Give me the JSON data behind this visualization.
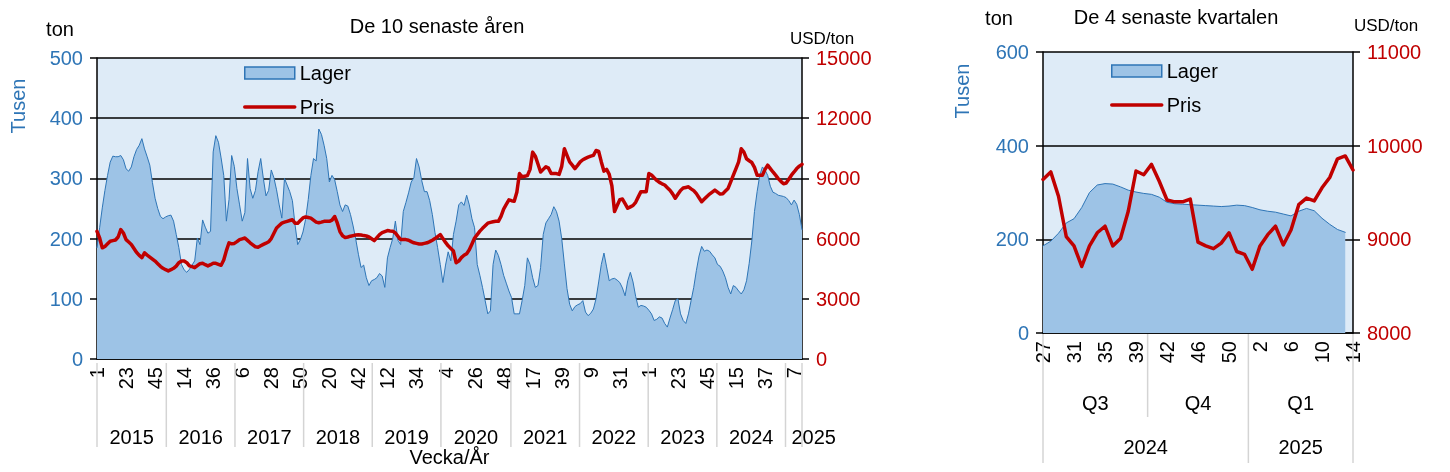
{
  "chart_data": [
    {
      "type": "area",
      "title": "De 10 senaste åren",
      "xlabel": "Vecka/År",
      "ylabel": "ton",
      "y2label": "USD/ton",
      "annotations": [
        "Tusen",
        "2015",
        "2016",
        "2017",
        "2018",
        "2019",
        "2020",
        "2021",
        "2022",
        "2023",
        "2024",
        "2025"
      ],
      "categories": [
        "1",
        null,
        null,
        null,
        null,
        null,
        null,
        null,
        null,
        null,
        null,
        "23",
        null,
        null,
        null,
        null,
        null,
        null,
        null,
        null,
        null,
        null,
        "45",
        null,
        null,
        null,
        null,
        null,
        null,
        null,
        null,
        null,
        null,
        "14",
        null,
        null,
        null,
        null,
        null,
        null,
        null,
        null,
        null,
        null,
        "36",
        null,
        null,
        null,
        null,
        null,
        null,
        null,
        null,
        null,
        null,
        "6",
        null,
        null,
        null,
        null,
        null,
        null,
        null,
        null,
        null,
        null,
        "28",
        null,
        null,
        null,
        null,
        null,
        null,
        null,
        null,
        null,
        null,
        "50",
        null,
        null,
        null,
        null,
        null,
        null,
        null,
        null,
        null,
        null,
        "20",
        null,
        null,
        null,
        null,
        null,
        null,
        null,
        null,
        null,
        null,
        "42",
        null,
        null,
        null,
        null,
        null,
        null,
        null,
        null,
        null,
        null,
        "12",
        null,
        null,
        null,
        null,
        null,
        null,
        null,
        null,
        null,
        null,
        "34",
        null,
        null,
        null,
        null,
        null,
        null,
        null,
        null,
        null,
        null,
        "4",
        null,
        null,
        null,
        null,
        null,
        null,
        null,
        null,
        null,
        null,
        "26",
        null,
        null,
        null,
        null,
        null,
        null,
        null,
        null,
        null,
        null,
        "48",
        null,
        null,
        null,
        null,
        null,
        null,
        null,
        null,
        null,
        null,
        "17",
        null,
        null,
        null,
        null,
        null,
        null,
        null,
        null,
        null,
        null,
        "39",
        null,
        null,
        null,
        null,
        null,
        null,
        null,
        null,
        null,
        null,
        "9",
        null,
        null,
        null,
        null,
        null,
        null,
        null,
        null,
        null,
        null,
        "31",
        null,
        null,
        null,
        null,
        null,
        null,
        null,
        null,
        null,
        null,
        "1",
        null,
        null,
        null,
        null,
        null,
        null,
        null,
        null,
        null,
        null,
        "23",
        null,
        null,
        null,
        null,
        null,
        null,
        null,
        null,
        null,
        null,
        "45",
        null,
        null,
        null,
        null,
        null,
        null,
        null,
        null,
        null,
        null,
        "15",
        null,
        null,
        null,
        null,
        null,
        null,
        null,
        null,
        null,
        null,
        "37",
        null,
        null,
        null,
        null,
        null,
        null,
        null,
        null,
        null,
        null,
        "7",
        null,
        null,
        null
      ],
      "ylim": [
        0,
        500
      ],
      "yticks": [
        0,
        100,
        200,
        300,
        400,
        500
      ],
      "y2lim": [
        0,
        15000
      ],
      "y2ticks": [
        0,
        3000,
        6000,
        9000,
        12000,
        15000
      ],
      "grid": "y",
      "legend": "top",
      "series": [
        {
          "name": "Lager",
          "color": "#9dc3e6",
          "values": [
            185,
            218,
            251,
            280,
            305,
            327,
            337,
            336,
            336,
            338,
            331,
            316,
            312,
            319,
            336,
            348,
            355,
            366,
            349,
            336,
            322,
            293,
            267,
            250,
            237,
            233,
            236,
            238,
            239,
            229,
            207,
            185,
            157,
            148,
            144,
            149,
            156,
            163,
            201,
            190,
            231,
            219,
            209,
            212,
            344,
            371,
            360,
            334,
            305,
            229,
            265,
            338,
            320,
            283,
            256,
            229,
            243,
            333,
            283,
            267,
            280,
            311,
            333,
            300,
            271,
            280,
            314,
            301,
            281,
            256,
            234,
            300,
            289,
            278,
            263,
            223,
            190,
            198,
            211,
            232,
            265,
            305,
            333,
            329,
            382,
            373,
            355,
            333,
            294,
            305,
            298,
            278,
            256,
            245,
            256,
            254,
            240,
            221,
            199,
            174,
            152,
            156,
            135,
            122,
            130,
            132,
            135,
            142,
            138,
            119,
            168,
            185,
            200,
            229,
            197,
            190,
            245,
            260,
            276,
            294,
            301,
            333,
            319,
            296,
            278,
            278,
            263,
            240,
            210,
            185,
            157,
            127,
            156,
            178,
            163,
            207,
            229,
            256,
            261,
            255,
            272,
            256,
            233,
            218,
            157,
            139,
            119,
            97,
            75,
            80,
            157,
            181,
            172,
            157,
            139,
            126,
            113,
            102,
            75,
            75,
            75,
            97,
            122,
            168,
            157,
            135,
            119,
            122,
            152,
            207,
            226,
            233,
            240,
            253,
            245,
            229,
            200,
            158,
            117,
            91,
            80,
            87,
            90,
            92,
            97,
            78,
            72,
            76,
            83,
            100,
            128,
            157,
            176,
            153,
            130,
            133,
            134,
            131,
            127,
            118,
            105,
            130,
            144,
            128,
            104,
            86,
            89,
            88,
            86,
            81,
            75,
            64,
            66,
            70,
            68,
            59,
            53,
            68,
            82,
            97,
            100,
            75,
            64,
            59,
            75,
            97,
            119,
            147,
            171,
            187,
            179,
            181,
            179,
            173,
            168,
            157,
            154,
            146,
            135,
            119,
            108,
            122,
            119,
            113,
            108,
            115,
            130,
            159,
            196,
            245,
            278,
            305,
            319,
            314,
            305,
            287,
            277,
            275,
            272,
            271,
            270,
            268,
            263,
            256,
            264,
            257,
            240,
            215
          ]
        },
        {
          "name": "Pris",
          "type": "line",
          "axis": "y2",
          "color": "#c00000",
          "values": [
            6360,
            6030,
            5540,
            5610,
            5740,
            5870,
            5900,
            5930,
            6080,
            6450,
            6280,
            5950,
            5830,
            5710,
            5510,
            5310,
            5160,
            5050,
            5290,
            5180,
            5080,
            4980,
            4880,
            4750,
            4620,
            4520,
            4450,
            4390,
            4450,
            4520,
            4630,
            4800,
            4880,
            4880,
            4800,
            4640,
            4600,
            4550,
            4650,
            4750,
            4770,
            4700,
            4640,
            4700,
            4770,
            4770,
            4720,
            4670,
            4930,
            5400,
            5790,
            5740,
            5760,
            5850,
            5950,
            5990,
            6030,
            5910,
            5790,
            5690,
            5590,
            5570,
            5640,
            5710,
            5770,
            5840,
            6000,
            6270,
            6530,
            6650,
            6770,
            6820,
            6860,
            6900,
            6940,
            6770,
            6760,
            6900,
            7030,
            7080,
            7050,
            7020,
            6920,
            6820,
            6790,
            6820,
            6860,
            6860,
            6860,
            6920,
            7100,
            6780,
            6350,
            6140,
            6050,
            6080,
            6120,
            6150,
            6180,
            6190,
            6180,
            6150,
            6130,
            6080,
            5990,
            5900,
            6050,
            6200,
            6300,
            6350,
            6400,
            6380,
            6370,
            6280,
            6110,
            5950,
            5950,
            5950,
            5920,
            5850,
            5790,
            5760,
            5730,
            5730,
            5760,
            5790,
            5850,
            5920,
            6000,
            6100,
            6200,
            6000,
            5810,
            5640,
            5510,
            5380,
            4800,
            4880,
            5050,
            5170,
            5250,
            5440,
            5730,
            6030,
            6200,
            6370,
            6510,
            6640,
            6770,
            6810,
            6840,
            6860,
            6860,
            7110,
            7470,
            7700,
            7930,
            7890,
            7860,
            8310,
            9240,
            9080,
            9110,
            9140,
            9450,
            10310,
            10110,
            9720,
            9320,
            9450,
            9580,
            9510,
            9240,
            9240,
            9240,
            9200,
            9600,
            10480,
            10150,
            9820,
            9660,
            9490,
            9650,
            9820,
            9930,
            10000,
            10060,
            10110,
            10150,
            10390,
            10340,
            9820,
            9360,
            9450,
            9200,
            8630,
            7350,
            7650,
            7940,
            7970,
            7740,
            7510,
            7580,
            7650,
            7810,
            8080,
            8340,
            8340,
            8340,
            9240,
            9170,
            9030,
            8900,
            8800,
            8730,
            8670,
            8540,
            8410,
            8230,
            8010,
            8210,
            8400,
            8520,
            8550,
            8580,
            8480,
            8390,
            8240,
            8040,
            7840,
            7970,
            8100,
            8220,
            8320,
            8420,
            8320,
            8220,
            8240,
            8370,
            8500,
            8830,
            9160,
            9490,
            9820,
            10480,
            10310,
            9980,
            9880,
            9790,
            9550,
            9160,
            9160,
            9160,
            9450,
            9660,
            9490,
            9320,
            9160,
            8990,
            8850,
            8730,
            8770,
            8960,
            9160,
            9320,
            9490,
            9610,
            9700
          ]
        }
      ]
    },
    {
      "type": "area",
      "title": "De 4 senaste kvartalen",
      "ylabel": "ton",
      "y2label": "USD/ton",
      "annotations": [
        "Tusen",
        "Q3",
        "Q4",
        "Q1",
        "2024",
        "2025"
      ],
      "categories": [
        "27",
        null,
        null,
        null,
        "31",
        null,
        null,
        null,
        "35",
        null,
        null,
        null,
        "39",
        null,
        null,
        null,
        "42",
        null,
        null,
        null,
        "46",
        null,
        null,
        null,
        "50",
        null,
        null,
        null,
        "2",
        null,
        null,
        null,
        "6",
        null,
        null,
        null,
        "10",
        null,
        null,
        null,
        "14"
      ],
      "ylim": [
        0,
        600
      ],
      "yticks": [
        0,
        200,
        400,
        600
      ],
      "y2lim": [
        8000,
        11000
      ],
      "y2ticks": [
        8000,
        9000,
        10000,
        11000
      ],
      "grid": "y",
      "legend": "top",
      "series": [
        {
          "name": "Lager",
          "color": "#9dc3e6",
          "values": [
            186,
            196,
            213,
            235,
            244,
            268,
            300,
            316,
            319,
            318,
            312,
            305,
            301,
            298,
            296,
            290,
            279,
            276,
            275,
            274,
            273,
            272,
            271,
            270,
            271,
            273,
            272,
            268,
            263,
            260,
            258,
            254,
            250,
            260,
            266,
            261,
            245,
            232,
            221,
            215,
            null
          ]
        },
        {
          "name": "Pris",
          "type": "line",
          "axis": "y2",
          "color": "#c00000",
          "values": [
            9640,
            9720,
            9460,
            9030,
            8930,
            8710,
            8930,
            9070,
            9140,
            8930,
            9010,
            9300,
            9730,
            9690,
            9800,
            9620,
            9420,
            9400,
            9400,
            9430,
            8970,
            8930,
            8900,
            8960,
            9070,
            8870,
            8840,
            8680,
            8930,
            9050,
            9140,
            8940,
            9100,
            9370,
            9440,
            9410,
            9550,
            9660,
            9860,
            9890,
            9740
          ]
        }
      ]
    }
  ]
}
